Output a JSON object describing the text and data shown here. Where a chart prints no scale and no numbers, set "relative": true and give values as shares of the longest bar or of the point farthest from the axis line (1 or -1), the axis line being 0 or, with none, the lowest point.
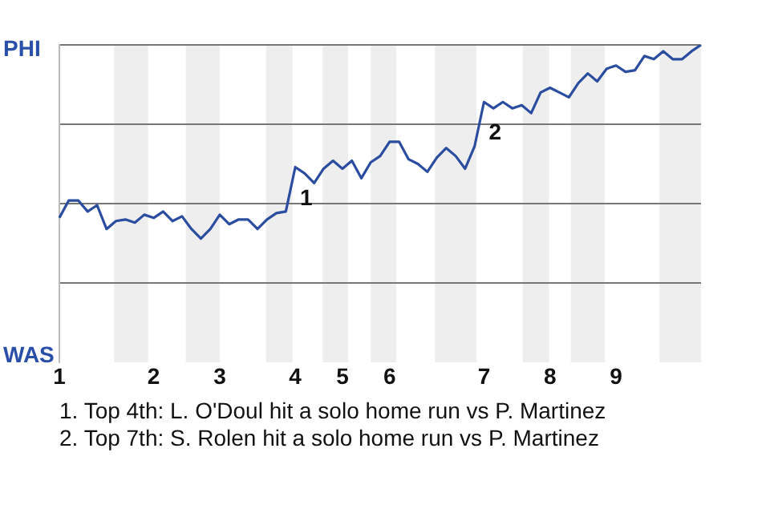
{
  "chart_data": {
    "type": "line",
    "relative": true,
    "categories": [
      "1",
      null,
      null,
      null,
      null,
      null,
      null,
      null,
      null,
      null,
      "2",
      null,
      null,
      null,
      null,
      null,
      null,
      "3",
      null,
      null,
      null,
      null,
      null,
      null,
      null,
      "4",
      null,
      null,
      null,
      null,
      "5",
      null,
      null,
      null,
      null,
      "6",
      null,
      null,
      null,
      null,
      null,
      null,
      null,
      null,
      null,
      "7",
      null,
      null,
      null,
      null,
      null,
      null,
      "8",
      null,
      null,
      null,
      null,
      null,
      null,
      "9",
      null,
      null,
      null,
      null,
      null,
      null,
      null,
      null,
      null
    ],
    "series": [
      {
        "color": "#2b4da0",
        "values": [
          0.455,
          0.51,
          0.51,
          0.475,
          0.495,
          0.42,
          0.445,
          0.45,
          0.44,
          0.465,
          0.455,
          0.475,
          0.445,
          0.46,
          0.42,
          0.39,
          0.42,
          0.465,
          0.435,
          0.45,
          0.45,
          0.42,
          0.45,
          0.47,
          0.475,
          0.615,
          0.595,
          0.565,
          0.61,
          0.635,
          0.61,
          0.635,
          0.58,
          0.63,
          0.65,
          0.695,
          0.695,
          0.64,
          0.625,
          0.6,
          0.645,
          0.675,
          0.65,
          0.61,
          0.68,
          0.82,
          0.8,
          0.82,
          0.8,
          0.81,
          0.785,
          0.85,
          0.865,
          0.85,
          0.835,
          0.88,
          0.91,
          0.885,
          0.925,
          0.935,
          0.915,
          0.92,
          0.965,
          0.955,
          0.98,
          0.955,
          0.955,
          0.98,
          1
        ]
      }
    ],
    "grid": "y",
    "legend": false,
    "marker": "none",
    "line_style": "solid",
    "annotations": [
      "PHI",
      "WAS",
      "1",
      "2",
      "1. Top 4th: L. O'Doul hit a solo home run vs P. Martinez",
      "2. Top 7th: S. Rolen hit a solo home run vs P. Martinez"
    ]
  }
}
